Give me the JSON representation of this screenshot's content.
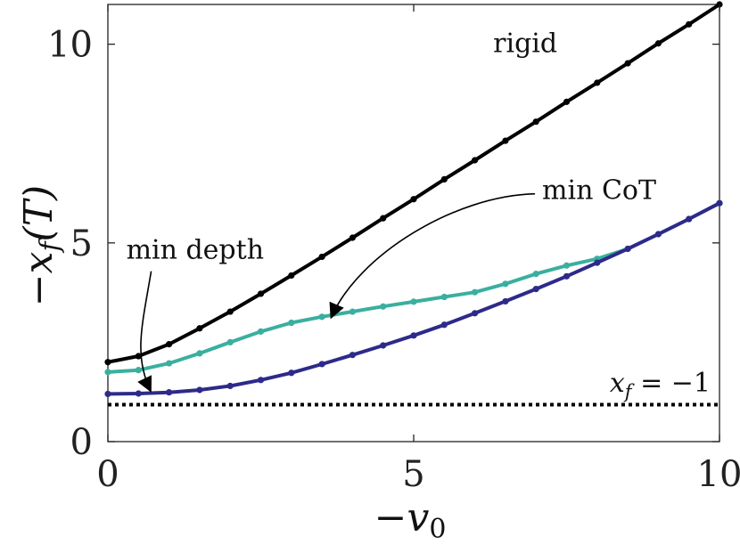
{
  "chart_data": {
    "type": "line",
    "xlabel": "−v",
    "xlabel_sub": "0",
    "ylabel": "−x",
    "ylabel_sub": "f",
    "ylabel_tail": "(T)",
    "xlim": [
      0,
      10
    ],
    "ylim": [
      0,
      11
    ],
    "xticks": [
      0,
      5,
      10
    ],
    "yticks": [
      0,
      5,
      10
    ],
    "grid": false,
    "x": [
      0,
      0.5,
      1,
      1.5,
      2,
      2.5,
      3,
      3.5,
      4,
      4.5,
      5,
      5.5,
      6,
      6.5,
      7,
      7.5,
      8,
      8.5,
      9,
      9.5,
      10
    ],
    "series": [
      {
        "name": "rigid",
        "color": "#000000",
        "values": [
          2.0,
          2.15,
          2.45,
          2.85,
          3.27,
          3.72,
          4.18,
          4.65,
          5.13,
          5.62,
          6.1,
          6.6,
          7.08,
          7.57,
          8.05,
          8.55,
          9.03,
          9.52,
          10.02,
          10.5,
          11.0
        ]
      },
      {
        "name": "min CoT",
        "color": "#3aaf9f",
        "values": [
          1.75,
          1.8,
          1.97,
          2.22,
          2.5,
          2.77,
          2.99,
          3.14,
          3.27,
          3.4,
          3.52,
          3.64,
          3.76,
          3.97,
          4.22,
          4.43,
          4.6,
          4.85,
          5.22,
          5.6,
          6.0
        ]
      },
      {
        "name": "min depth",
        "color": "#2e2a8a",
        "values": [
          1.2,
          1.21,
          1.24,
          1.3,
          1.4,
          1.55,
          1.73,
          1.95,
          2.18,
          2.42,
          2.67,
          2.94,
          3.23,
          3.53,
          3.84,
          4.16,
          4.5,
          4.85,
          5.22,
          5.6,
          6.0
        ]
      }
    ],
    "reference_line": {
      "label": "x",
      "label_sub": "f",
      "label_tail": " = −1",
      "y": 0.93,
      "style": "dotted"
    },
    "annotations": [
      {
        "text": "rigid",
        "x": 6.3,
        "y": 9.8
      },
      {
        "text": "min CoT",
        "x": 7.1,
        "y": 6.1,
        "arrow_to": [
          3.65,
          3.12
        ]
      },
      {
        "text": "min depth",
        "x": 0.3,
        "y": 4.6,
        "arrow_to": [
          0.7,
          1.27
        ]
      }
    ]
  }
}
